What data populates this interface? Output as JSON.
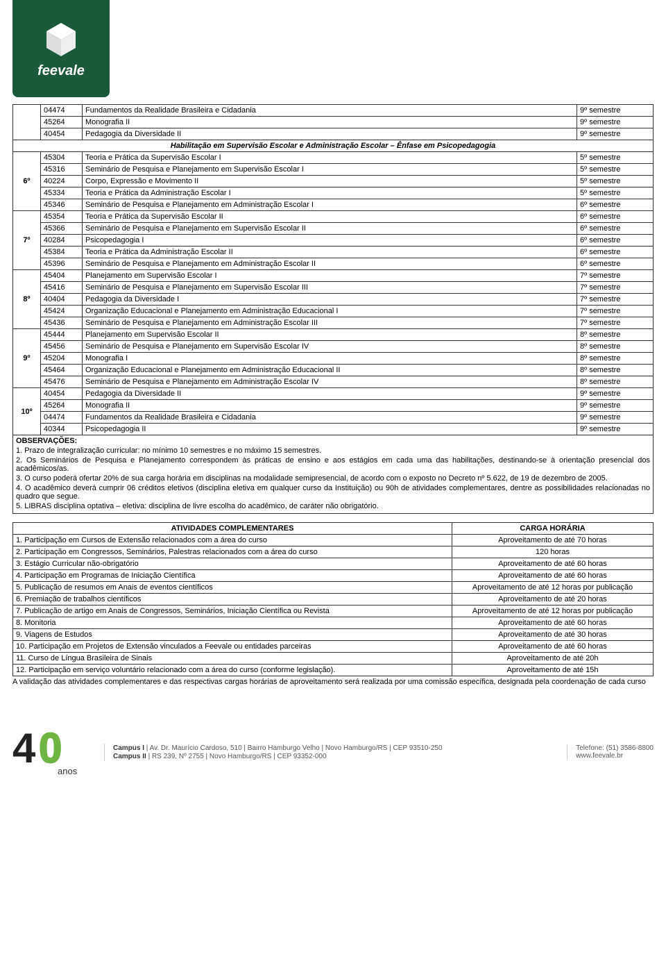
{
  "brand": "feevale",
  "top_rows": [
    {
      "code": "04474",
      "name": "Fundamentos da Realidade Brasileira e Cidadania",
      "sem": "9º semestre"
    },
    {
      "code": "45264",
      "name": "Monografia II",
      "sem": "9º semestre"
    },
    {
      "code": "40454",
      "name": "Pedagogia da Diversidade II",
      "sem": "9º semestre"
    }
  ],
  "hab_title": "Habilitação em Supervisão Escolar e Administração Escolar – Ênfase em Psicopedagogia",
  "groups": [
    {
      "period": "6º",
      "rows": [
        {
          "code": "45304",
          "name": "Teoria e Prática da Supervisão Escolar I",
          "sem": "5º semestre"
        },
        {
          "code": "45316",
          "name": "Seminário de Pesquisa e Planejamento em Supervisão Escolar I",
          "sem": "5º semestre"
        },
        {
          "code": "40224",
          "name": "Corpo, Expressão e Movimento II",
          "sem": "5º semestre"
        },
        {
          "code": "45334",
          "name": "Teoria e Prática da Administração Escolar I",
          "sem": "5º semestre"
        },
        {
          "code": "45346",
          "name": "Seminário de Pesquisa e Planejamento em Administração Escolar I",
          "sem": "6º semestre"
        }
      ]
    },
    {
      "period": "7º",
      "rows": [
        {
          "code": "45354",
          "name": "Teoria e Prática da Supervisão Escolar II",
          "sem": "6º semestre"
        },
        {
          "code": "45366",
          "name": "Seminário de Pesquisa e Planejamento em Supervisão Escolar II",
          "sem": "6º semestre"
        },
        {
          "code": "40284",
          "name": "Psicopedagogia I",
          "sem": "6º semestre"
        },
        {
          "code": "45384",
          "name": "Teoria e Prática da Administração Escolar II",
          "sem": "6º semestre"
        },
        {
          "code": "45396",
          "name": "Seminário de Pesquisa e Planejamento em Administração Escolar II",
          "sem": "6º semestre"
        }
      ]
    },
    {
      "period": "8º",
      "rows": [
        {
          "code": "45404",
          "name": "Planejamento em Supervisão Escolar I",
          "sem": "7º semestre"
        },
        {
          "code": "45416",
          "name": "Seminário de Pesquisa e Planejamento em Supervisão Escolar III",
          "sem": "7º semestre"
        },
        {
          "code": "40404",
          "name": "Pedagogia da Diversidade I",
          "sem": "7º semestre"
        },
        {
          "code": "45424",
          "name": "Organização Educacional e Planejamento em Administração Educacional I",
          "sem": "7º semestre"
        },
        {
          "code": "45436",
          "name": "Seminário de Pesquisa e Planejamento em Administração Escolar III",
          "sem": "7º semestre"
        }
      ]
    },
    {
      "period": "9º",
      "rows": [
        {
          "code": "45444",
          "name": "Planejamento em Supervisão Escolar II",
          "sem": "8º semestre"
        },
        {
          "code": "45456",
          "name": "Seminário de Pesquisa e Planejamento em Supervisão Escolar IV",
          "sem": "8º semestre"
        },
        {
          "code": "45204",
          "name": "Monografia I",
          "sem": "8º semestre"
        },
        {
          "code": "45464",
          "name": "Organização Educacional e Planejamento em Administração Educacional II",
          "sem": "8º semestre"
        },
        {
          "code": "45476",
          "name": "Seminário de Pesquisa e Planejamento em Administração Escolar IV",
          "sem": "8º semestre"
        }
      ]
    },
    {
      "period": "10º",
      "rows": [
        {
          "code": "40454",
          "name": "Pedagogia da Diversidade II",
          "sem": "9º semestre"
        },
        {
          "code": "45264",
          "name": "Monografia II",
          "sem": "9º semestre"
        },
        {
          "code": "04474",
          "name": "Fundamentos da Realidade Brasileira e Cidadania",
          "sem": "9º semestre"
        },
        {
          "code": "40344",
          "name": "Psicopedagogia II",
          "sem": "9º semestre"
        }
      ]
    }
  ],
  "obs_title": "OBSERVAÇÕES:",
  "obs": [
    "1. Prazo de integralização curricular: no mínimo 10 semestres e no máximo 15 semestres.",
    "2. Os Seminários de Pesquisa e Planejamento correspondem às práticas de ensino e aos estágios em cada uma das habilitações, destinando-se à orientação presencial dos acadêmicos/as.",
    "3. O curso poderá ofertar 20% de sua carga horária em disciplinas na modalidade semipresencial, de acordo com o exposto no Decreto nº 5.622, de 19 de dezembro de 2005.",
    "4. O acadêmico deverá cumprir 06 créditos eletivos (disciplina eletiva em qualquer curso da Instituição) ou 90h de atividades complementares, dentre as possibilidades relacionadas no quadro que segue.",
    "5. LIBRAS disciplina optativa – eletiva: disciplina de livre escolha do acadêmico, de caráter não obrigatório."
  ],
  "comp_headers": {
    "a": "ATIVIDADES COMPLEMENTARES",
    "b": "CARGA HORÁRIA"
  },
  "comp_rows": [
    {
      "a": "1. Participação em Cursos de Extensão relacionados com a área do curso",
      "b": "Aproveitamento de até 70 horas"
    },
    {
      "a": "2. Participação em Congressos, Seminários, Palestras relacionados com a área do curso",
      "b": "120 horas"
    },
    {
      "a": "3. Estágio Curricular não-obrigatório",
      "b": "Aproveitamento de até 60 horas"
    },
    {
      "a": "4. Participação em Programas de Iniciação Científica",
      "b": "Aproveitamento de até 60 horas"
    },
    {
      "a": "5. Publicação de resumos em Anais de eventos científicos",
      "b": "Aproveitamento de até 12 horas por publicação"
    },
    {
      "a": "6. Premiação de trabalhos científicos",
      "b": "Aproveitamento de até 20 horas"
    },
    {
      "a": "7. Publicação de artigo em Anais de Congressos, Seminários, Iniciação Científica ou Revista",
      "b": "Aproveitamento de até 12 horas por publicação"
    },
    {
      "a": "8. Monitoria",
      "b": "Aproveitamento de até 60 horas"
    },
    {
      "a": "9. Viagens de Estudos",
      "b": "Aproveitamento de até 30 horas"
    },
    {
      "a": "10. Participação em Projetos de Extensão vinculados a Feevale ou entidades parceiras",
      "b": "Aproveitamento de até 60 horas"
    },
    {
      "a": "11. Curso de Língua Brasileira de Sinais",
      "b": "Aproveitamento de até 20h"
    },
    {
      "a": "12. Participação em serviço voluntário relacionado com a área do curso (conforme legislação).",
      "b": "Aproveitamento de até 15h"
    }
  ],
  "validacao": "A validação das atividades complementares e das respectivas cargas horárias de aproveitamento será realizada por uma comissão específica, designada pela coordenação de cada curso",
  "footer": {
    "anos_text": "anos",
    "campus1_label": "Campus I",
    "campus1": " | Av. Dr. Maurício Cardoso, 510 | Bairro Hamburgo Velho | Novo Hamburgo/RS | CEP 93510-250",
    "campus2_label": "Campus II",
    "campus2": " | RS 239, Nº 2755 | Novo Hamburgo/RS | CEP 93352-000",
    "phone": "Telefone: (51) 3586-8800",
    "site": "www.feevale.br"
  },
  "colors": {
    "header_bg": "#1a5a3a",
    "green": "#6fb544",
    "border": "#333333"
  }
}
